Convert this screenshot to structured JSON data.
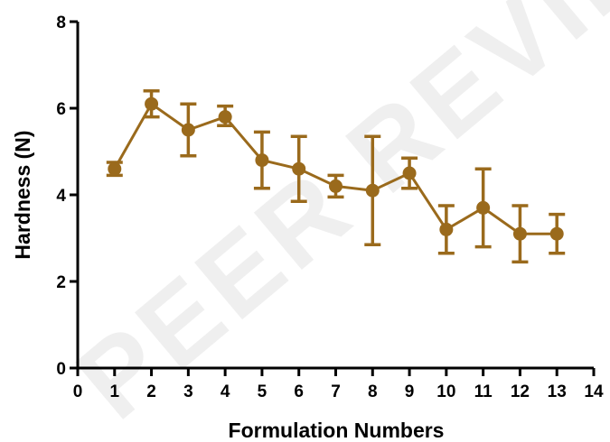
{
  "chart_data": {
    "type": "line",
    "xlabel": "Formulation Numbers",
    "ylabel": "Hardness (N)",
    "xlim": [
      0,
      14
    ],
    "ylim": [
      0,
      8
    ],
    "xticks": [
      0,
      1,
      2,
      3,
      4,
      5,
      6,
      7,
      8,
      9,
      10,
      11,
      12,
      13,
      14
    ],
    "yticks": [
      0,
      2,
      4,
      6,
      8
    ],
    "grid": false,
    "legend": "none",
    "watermark": "PEER REVIEW",
    "series": [
      {
        "x": [
          1,
          2,
          3,
          4,
          5,
          6,
          7,
          8,
          9,
          10,
          11,
          12,
          13
        ],
        "y": [
          4.6,
          6.1,
          5.5,
          5.8,
          4.8,
          4.6,
          4.2,
          4.1,
          4.5,
          3.2,
          3.7,
          3.1,
          3.1
        ],
        "err_upper": [
          4.75,
          6.4,
          6.1,
          6.05,
          5.45,
          5.35,
          4.45,
          5.35,
          4.85,
          3.75,
          4.6,
          3.75,
          3.55
        ],
        "err_lower": [
          4.45,
          5.8,
          4.9,
          5.6,
          4.15,
          3.85,
          3.95,
          2.85,
          4.15,
          2.65,
          2.8,
          2.45,
          2.65
        ]
      }
    ]
  },
  "colors": {
    "series": "#9A6A1C",
    "axis": "#000000"
  }
}
